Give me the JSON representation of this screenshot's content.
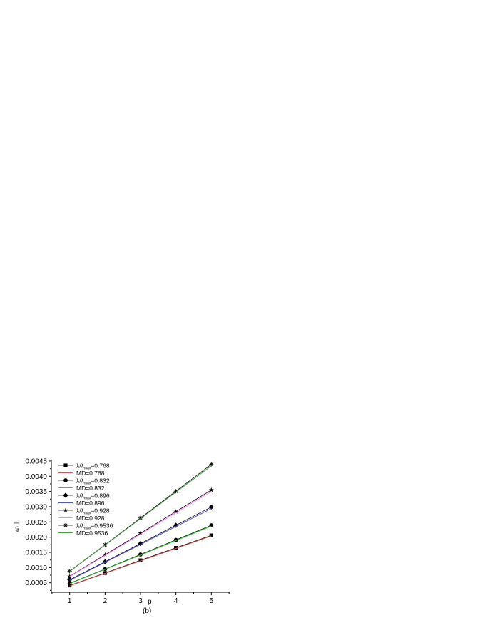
{
  "chart_data": {
    "type": "line",
    "title": "",
    "caption": "(b)",
    "xlabel": "p",
    "ylabel": "ω⊥",
    "xlim": [
      0.5,
      5.5
    ],
    "ylim": [
      0.0002,
      0.0045
    ],
    "xticks": [
      "1",
      "2",
      "3",
      "4",
      "5"
    ],
    "yticks": [
      "0.0005",
      "0.0010",
      "0.0015",
      "0.0020",
      "0.0025",
      "0.0030",
      "0.0035",
      "0.0040",
      "0.0045"
    ],
    "grid": false,
    "legend_position": "top-left",
    "x": [
      1,
      2,
      3,
      4,
      5
    ],
    "series": [
      {
        "name": "λ/λmax=0.768",
        "legend_main": "λ/λ",
        "legend_sub": "max",
        "legend_val": "=0.768",
        "marker": "square",
        "color": "#000000",
        "values": [
          0.00041,
          0.00082,
          0.00124,
          0.00165,
          0.00206
        ]
      },
      {
        "name": "MD=0.768",
        "color": "#e05050",
        "values": [
          0.0004,
          0.00081,
          0.00122,
          0.00163,
          0.00204
        ]
      },
      {
        "name": "λ/λmax=0.832",
        "legend_main": "λ/λ",
        "legend_sub": "max",
        "legend_val": "=0.832",
        "marker": "circle",
        "color": "#000000",
        "values": [
          0.00048,
          0.00095,
          0.00143,
          0.00191,
          0.00239
        ]
      },
      {
        "name": "MD=0.832",
        "color": "#30d030",
        "values": [
          0.00047,
          0.00094,
          0.00141,
          0.00189,
          0.00236
        ]
      },
      {
        "name": "λ/λmax=0.896",
        "legend_main": "λ/λ",
        "legend_sub": "max",
        "legend_val": "=0.896",
        "marker": "diamond",
        "color": "#000000",
        "values": [
          0.0006,
          0.00119,
          0.00179,
          0.00239,
          0.00299
        ]
      },
      {
        "name": "MD=0.896",
        "color": "#5050e0",
        "values": [
          0.00058,
          0.00117,
          0.00176,
          0.00235,
          0.00294
        ]
      },
      {
        "name": "λ/λmax=0.928",
        "legend_main": "λ/λ",
        "legend_sub": "max",
        "legend_val": "=0.928",
        "marker": "star",
        "color": "#000000",
        "values": [
          0.00071,
          0.00142,
          0.00213,
          0.00284,
          0.00355
        ]
      },
      {
        "name": "MD=0.928",
        "color": "#ff80ff",
        "values": [
          0.0007,
          0.0014,
          0.0021,
          0.0028,
          0.0035
        ]
      },
      {
        "name": "λ/λmax=0.9536",
        "legend_main": "λ/λ",
        "legend_sub": "max",
        "legend_val": "=0.9536",
        "marker": "asterisk",
        "color": "#000000",
        "values": [
          0.00088,
          0.00175,
          0.00263,
          0.00351,
          0.00439
        ]
      },
      {
        "name": "MD=0.9536",
        "color": "#40a040",
        "values": [
          0.00087,
          0.00174,
          0.00261,
          0.00348,
          0.00434
        ]
      }
    ]
  }
}
